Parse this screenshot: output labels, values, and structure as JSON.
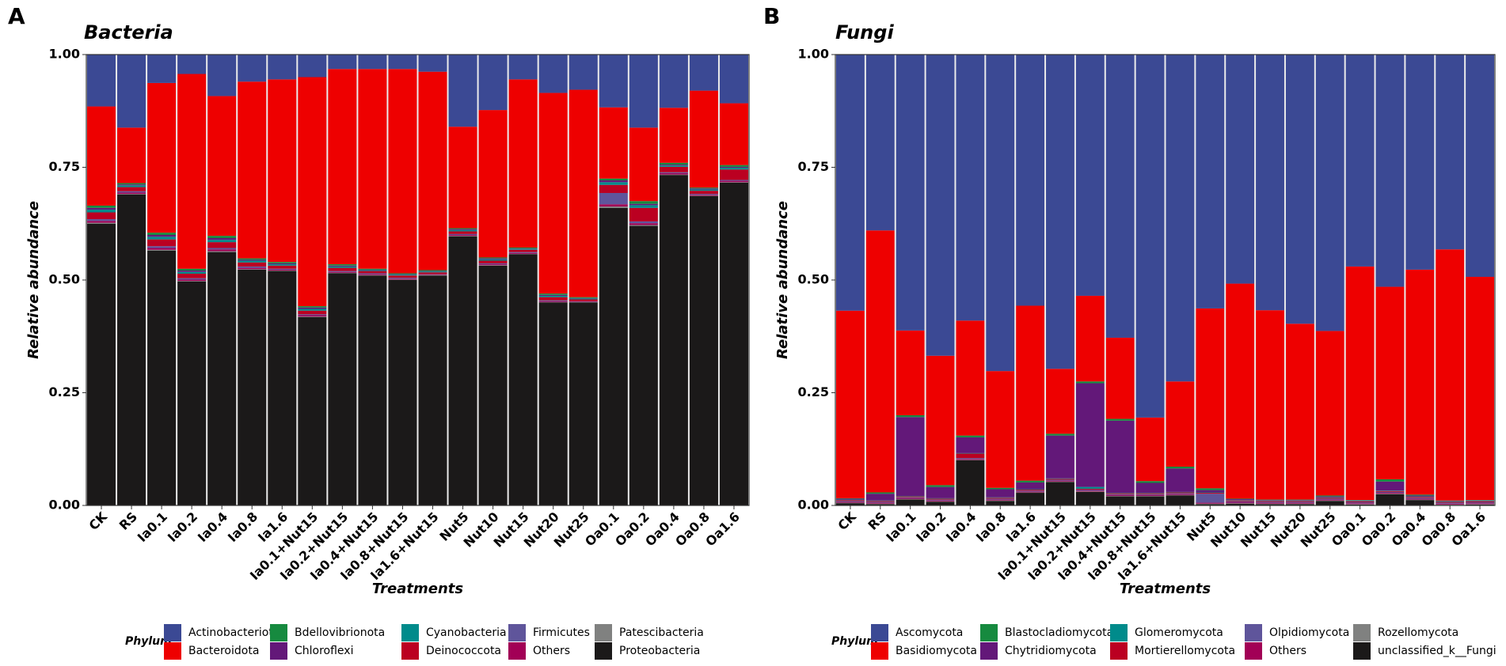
{
  "chart_data": [
    {
      "type": "bar",
      "stacked": true,
      "panel": "A",
      "title": "Bacteria",
      "xlabel": "Treatments",
      "ylabel": "Relative abundance",
      "legend_title": "Phylum",
      "categories": [
        "CK",
        "RS",
        "Ia0.1",
        "Ia0.2",
        "Ia0.4",
        "Ia0.8",
        "Ia1.6",
        "Ia0.1+Nut15",
        "Ia0.2+Nut15",
        "Ia0.4+Nut15",
        "Ia0.8+Nut15",
        "Ia1.6+Nut15",
        "Nut5",
        "Nut10",
        "Nut15",
        "Nut20",
        "Nut25",
        "Oa0.1",
        "Oa0.2",
        "Oa0.4",
        "Oa0.8",
        "Oa1.6"
      ],
      "ylim": [
        0,
        1
      ],
      "yticks": [
        {
          "value": 0,
          "label": "0.00"
        },
        {
          "value": 0.25,
          "label": "0.25"
        },
        {
          "value": 0.5,
          "label": "0.50"
        },
        {
          "value": 0.75,
          "label": "0.75"
        },
        {
          "value": 1,
          "label": "1.00"
        }
      ],
      "series": [
        {
          "name": "Actinobacteriota",
          "color": "#3b4994",
          "values": [
            0.115,
            0.162,
            0.063,
            0.043,
            0.092,
            0.06,
            0.055,
            0.05,
            0.032,
            0.032,
            0.032,
            0.038,
            0.16,
            0.123,
            0.055,
            0.085,
            0.078,
            0.117,
            0.162,
            0.118,
            0.08,
            0.108
          ]
        },
        {
          "name": "Bacteroidota",
          "color": "#ee0000",
          "values": [
            0.22,
            0.123,
            0.332,
            0.432,
            0.31,
            0.392,
            0.405,
            0.508,
            0.433,
            0.443,
            0.453,
            0.44,
            0.225,
            0.327,
            0.373,
            0.445,
            0.46,
            0.158,
            0.163,
            0.122,
            0.215,
            0.137
          ]
        },
        {
          "name": "Bdellovibrionota",
          "color": "#168a3f",
          "values": [
            0.005,
            0.003,
            0.005,
            0.004,
            0.005,
            0.003,
            0.003,
            0.003,
            0.003,
            0.002,
            0.002,
            0.002,
            0.002,
            0.002,
            0.002,
            0.003,
            0.002,
            0.004,
            0.006,
            0.004,
            0.002,
            0.004
          ]
        },
        {
          "name": "Chloroflexi",
          "color": "#631879",
          "values": [
            0.004,
            0.002,
            0.004,
            0.003,
            0.004,
            0.002,
            0.002,
            0.003,
            0.002,
            0.001,
            0.001,
            0.001,
            0.002,
            0.002,
            0.001,
            0.002,
            0.001,
            0.004,
            0.003,
            0.002,
            0.002,
            0.002
          ]
        },
        {
          "name": "Cyanobacteria",
          "color": "#008b8b",
          "values": [
            0.006,
            0.004,
            0.006,
            0.004,
            0.005,
            0.004,
            0.003,
            0.004,
            0.003,
            0.002,
            0.002,
            0.002,
            0.003,
            0.003,
            0.002,
            0.003,
            0.002,
            0.006,
            0.006,
            0.003,
            0.003,
            0.004
          ]
        },
        {
          "name": "Deinococcota",
          "color": "#bb0021",
          "values": [
            0.015,
            0.009,
            0.015,
            0.01,
            0.013,
            0.009,
            0.007,
            0.008,
            0.007,
            0.005,
            0.005,
            0.004,
            0.006,
            0.006,
            0.005,
            0.007,
            0.004,
            0.018,
            0.03,
            0.012,
            0.007,
            0.023
          ]
        },
        {
          "name": "Firmicutes",
          "color": "#5f559b",
          "values": [
            0.004,
            0.003,
            0.004,
            0.003,
            0.003,
            0.003,
            0.002,
            0.002,
            0.002,
            0.002,
            0.002,
            0.001,
            0.002,
            0.002,
            0.002,
            0.002,
            0.001,
            0.025,
            0.004,
            0.002,
            0.002,
            0.002
          ]
        },
        {
          "name": "Others",
          "color": "#a20056",
          "values": [
            0.004,
            0.003,
            0.004,
            0.003,
            0.004,
            0.003,
            0.002,
            0.003,
            0.002,
            0.002,
            0.002,
            0.001,
            0.002,
            0.002,
            0.002,
            0.002,
            0.001,
            0.005,
            0.004,
            0.003,
            0.002,
            0.003
          ]
        },
        {
          "name": "Patescibacteria",
          "color": "#808180",
          "values": [
            0.002,
            0.001,
            0.002,
            0.001,
            0.002,
            0.001,
            0.001,
            0.001,
            0.001,
            0.001,
            0.001,
            0.001,
            0.001,
            0.001,
            0.001,
            0.001,
            0.001,
            0.003,
            0.002,
            0.001,
            0.001,
            0.001
          ]
        },
        {
          "name": "Proteobacteria",
          "color": "#1b1919",
          "values": [
            0.625,
            0.69,
            0.565,
            0.497,
            0.562,
            0.523,
            0.52,
            0.418,
            0.515,
            0.51,
            0.5,
            0.51,
            0.597,
            0.532,
            0.557,
            0.45,
            0.45,
            0.66,
            0.62,
            0.733,
            0.686,
            0.716
          ]
        }
      ]
    },
    {
      "type": "bar",
      "stacked": true,
      "panel": "B",
      "title": "Fungi",
      "xlabel": "Treatments",
      "ylabel": "Relative abundance",
      "legend_title": "Phylum",
      "categories": [
        "CK",
        "RS",
        "Ia0.1",
        "Ia0.2",
        "Ia0.4",
        "Ia0.8",
        "Ia1.6",
        "Ia0.1+Nut15",
        "Ia0.2+Nut15",
        "Ia0.4+Nut15",
        "Ia0.8+Nut15",
        "Ia1.6+Nut15",
        "Nut5",
        "Nut10",
        "Nut15",
        "Nut20",
        "Nut25",
        "Oa0.1",
        "Oa0.2",
        "Oa0.4",
        "Oa0.8",
        "Oa1.6"
      ],
      "ylim": [
        0,
        1
      ],
      "yticks": [
        {
          "value": 0,
          "label": "0.00"
        },
        {
          "value": 0.25,
          "label": "0.25"
        },
        {
          "value": 0.5,
          "label": "0.50"
        },
        {
          "value": 0.75,
          "label": "0.75"
        },
        {
          "value": 1,
          "label": "1.00"
        }
      ],
      "series": [
        {
          "name": "Ascomycota",
          "color": "#3b4994",
          "values": [
            0.568,
            0.39,
            0.612,
            0.668,
            0.59,
            0.702,
            0.557,
            0.697,
            0.535,
            0.628,
            0.805,
            0.725,
            0.563,
            0.508,
            0.567,
            0.597,
            0.613,
            0.47,
            0.515,
            0.477,
            0.432,
            0.493
          ]
        },
        {
          "name": "Basidiomycota",
          "color": "#ee0000",
          "values": [
            0.416,
            0.581,
            0.188,
            0.287,
            0.255,
            0.259,
            0.388,
            0.144,
            0.19,
            0.18,
            0.141,
            0.189,
            0.399,
            0.477,
            0.42,
            0.39,
            0.365,
            0.518,
            0.427,
            0.499,
            0.557,
            0.495
          ]
        },
        {
          "name": "Blastocladiomycota",
          "color": "#168a3f",
          "values": [
            0.001,
            0.003,
            0.004,
            0.004,
            0.004,
            0.003,
            0.004,
            0.004,
            0.004,
            0.004,
            0.004,
            0.004,
            0.004,
            0.001,
            0.001,
            0.001,
            0.002,
            0.001,
            0.005,
            0.002,
            0.001,
            0.001
          ]
        },
        {
          "name": "Chytridiomycota",
          "color": "#631879",
          "values": [
            0.002,
            0.015,
            0.175,
            0.025,
            0.035,
            0.018,
            0.015,
            0.095,
            0.23,
            0.16,
            0.022,
            0.052,
            0.005,
            0.002,
            0.001,
            0.001,
            0.002,
            0.001,
            0.02,
            0.002,
            0.001,
            0.001
          ]
        },
        {
          "name": "Glomeromycota",
          "color": "#008b8b",
          "values": [
            0.001,
            0.001,
            0.001,
            0.001,
            0.001,
            0.001,
            0.001,
            0.001,
            0.004,
            0.001,
            0.001,
            0.001,
            0.001,
            0.001,
            0.001,
            0.001,
            0.001,
            0.001,
            0.001,
            0.001,
            0.001,
            0.001
          ]
        },
        {
          "name": "Mortierellomycota",
          "color": "#bb0021",
          "values": [
            0.002,
            0.002,
            0.002,
            0.002,
            0.01,
            0.002,
            0.002,
            0.002,
            0.002,
            0.002,
            0.002,
            0.002,
            0.002,
            0.002,
            0.002,
            0.002,
            0.002,
            0.002,
            0.002,
            0.002,
            0.002,
            0.002
          ]
        },
        {
          "name": "Olpidiomycota",
          "color": "#5f559b",
          "values": [
            0.002,
            0.002,
            0.002,
            0.002,
            0.002,
            0.002,
            0.002,
            0.002,
            0.002,
            0.002,
            0.002,
            0.002,
            0.02,
            0.002,
            0.002,
            0.002,
            0.002,
            0.002,
            0.002,
            0.002,
            0.002,
            0.002
          ]
        },
        {
          "name": "Others",
          "color": "#a20056",
          "values": [
            0.002,
            0.002,
            0.002,
            0.002,
            0.002,
            0.002,
            0.002,
            0.002,
            0.002,
            0.002,
            0.002,
            0.002,
            0.002,
            0.002,
            0.002,
            0.002,
            0.002,
            0.002,
            0.002,
            0.002,
            0.002,
            0.002
          ]
        },
        {
          "name": "Rozellomycota",
          "color": "#808180",
          "values": [
            0.001,
            0.001,
            0.001,
            0.001,
            0.001,
            0.001,
            0.001,
            0.001,
            0.001,
            0.001,
            0.001,
            0.001,
            0.001,
            0.001,
            0.001,
            0.001,
            0.001,
            0.001,
            0.001,
            0.001,
            0.001,
            0.001
          ]
        },
        {
          "name": "unclassified_k__Fungi",
          "color": "#1b1919",
          "values": [
            0.005,
            0.003,
            0.013,
            0.008,
            0.1,
            0.01,
            0.028,
            0.052,
            0.03,
            0.02,
            0.02,
            0.022,
            0.003,
            0.004,
            0.003,
            0.003,
            0.01,
            0.002,
            0.025,
            0.012,
            0.001,
            0.002
          ]
        }
      ]
    }
  ]
}
